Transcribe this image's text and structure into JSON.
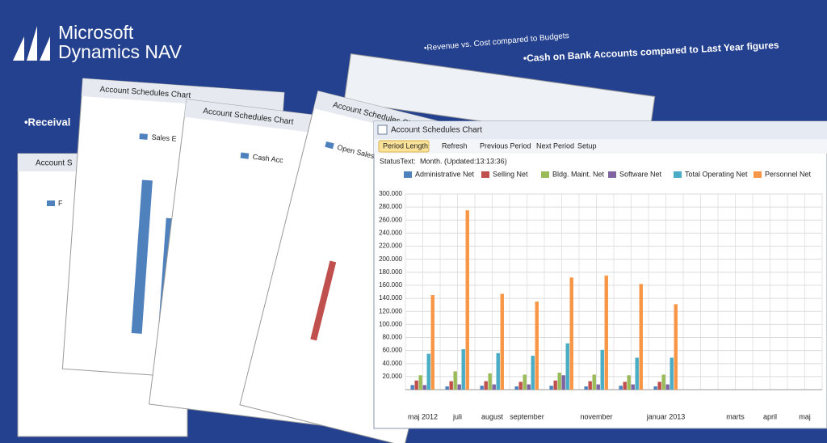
{
  "header": {
    "logo_line1": "Microsoft",
    "logo_line2": "Dynamics NAV"
  },
  "bullets": [
    "•Revenue vs. Cost compared to Budgets",
    "•Cash on Bank Accounts compared to Last Year figures",
    "•Receival"
  ],
  "background_windows": [
    {
      "title": "Account S",
      "legend": "F"
    },
    {
      "title": "Account Schedules Chart",
      "legend": "Sales E"
    },
    {
      "title": "Account Schedules Chart",
      "legend": "Cash Acc"
    },
    {
      "title": "Account Schedules Chart",
      "legend": "Open Sales Orders Net"
    }
  ],
  "window": {
    "title": "Account Schedules Chart",
    "toolbar": [
      "Period Length",
      "Refresh",
      "Previous Period",
      "Next Period",
      "Setup"
    ],
    "status_label": "StatusText:",
    "status": "Month. (Updated:13:13:36)"
  },
  "chart_data": {
    "type": "bar",
    "categories": [
      "maj 2012",
      "juli",
      "august",
      "september",
      null,
      "november",
      null,
      "januar 2013",
      null,
      "marts",
      "april",
      "maj"
    ],
    "series": [
      {
        "name": "Administrative Net",
        "color": "#4f81bd",
        "values": [
          7000,
          5000,
          6000,
          5000,
          6000,
          5000,
          6000,
          5000,
          null,
          null,
          null,
          null
        ]
      },
      {
        "name": "Selling Net",
        "color": "#c0504d",
        "values": [
          14000,
          13000,
          13000,
          12000,
          14000,
          13000,
          12000,
          12000,
          null,
          null,
          null,
          null
        ]
      },
      {
        "name": "Bldg. Maint. Net",
        "color": "#9bbb59",
        "values": [
          22000,
          28000,
          25000,
          23000,
          26000,
          23000,
          22000,
          23000,
          null,
          null,
          null,
          null
        ]
      },
      {
        "name": "Software Net",
        "color": "#8064a2",
        "values": [
          7000,
          8000,
          8000,
          8000,
          22000,
          8000,
          8000,
          8000,
          null,
          null,
          null,
          null
        ]
      },
      {
        "name": "Total Operating Net",
        "color": "#4bacc6",
        "values": [
          55000,
          62000,
          56000,
          52000,
          71000,
          61000,
          49000,
          49000,
          null,
          null,
          null,
          null
        ]
      },
      {
        "name": "Personnel Net",
        "color": "#f79646",
        "values": [
          145000,
          275000,
          147000,
          135000,
          172000,
          175000,
          162000,
          131000,
          null,
          null,
          null,
          null
        ]
      }
    ],
    "ylim": [
      0,
      300000
    ],
    "yticks": [
      {
        "value": 20000,
        "label": "20.000"
      },
      {
        "value": 40000,
        "label": "40.000"
      },
      {
        "value": 60000,
        "label": "60.000"
      },
      {
        "value": 80000,
        "label": "80.000"
      },
      {
        "value": 100000,
        "label": "100.000"
      },
      {
        "value": 120000,
        "label": "120.000"
      },
      {
        "value": 140000,
        "label": "140.000"
      },
      {
        "value": 160000,
        "label": "160.000"
      },
      {
        "value": 180000,
        "label": "180.000"
      },
      {
        "value": 200000,
        "label": "200.000"
      },
      {
        "value": 220000,
        "label": "220.000"
      },
      {
        "value": 240000,
        "label": "240.000"
      },
      {
        "value": 260000,
        "label": "260.000"
      },
      {
        "value": 280000,
        "label": "280.000"
      },
      {
        "value": 300000,
        "label": "300.000"
      }
    ],
    "grid": true
  }
}
